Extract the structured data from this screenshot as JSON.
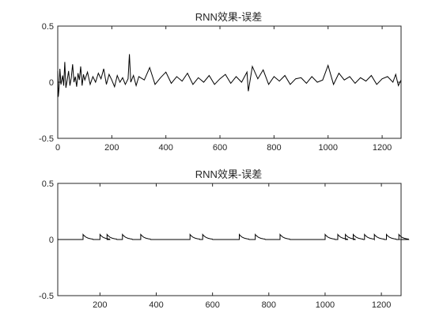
{
  "chart_data": [
    {
      "type": "line",
      "title": "RNN效果-误差",
      "xlabel": "",
      "ylabel": "",
      "xlim": [
        0,
        1270
      ],
      "ylim": [
        -0.5,
        0.5
      ],
      "xticks": [
        0,
        200,
        400,
        600,
        800,
        1000,
        1200
      ],
      "yticks": [
        -0.5,
        0,
        0.5
      ],
      "ytick_labels": [
        "-0.5",
        "0",
        "0.5"
      ],
      "grid": false,
      "color": "#000000",
      "series": [
        {
          "x": [
            0,
            2,
            5,
            8,
            12,
            18,
            22,
            26,
            30,
            35,
            40,
            45,
            50,
            55,
            60,
            65,
            70,
            75,
            80,
            85,
            90,
            95,
            100,
            110,
            120,
            130,
            140,
            150,
            160,
            170,
            180,
            190,
            200,
            210,
            220,
            230,
            240,
            250,
            260,
            265,
            270,
            280,
            290,
            300,
            320,
            340,
            360,
            380,
            400,
            420,
            440,
            460,
            480,
            500,
            520,
            540,
            560,
            580,
            600,
            620,
            640,
            660,
            680,
            700,
            705,
            720,
            740,
            760,
            780,
            800,
            820,
            840,
            860,
            880,
            900,
            920,
            940,
            960,
            980,
            1000,
            1020,
            1040,
            1060,
            1080,
            1100,
            1120,
            1140,
            1160,
            1180,
            1200,
            1220,
            1240,
            1250,
            1260,
            1270
          ],
          "y": [
            0.1,
            -0.13,
            -0.05,
            0.12,
            -0.02,
            0.06,
            -0.03,
            0.18,
            -0.05,
            0.02,
            0.1,
            -0.03,
            0.04,
            0.16,
            0.0,
            0.05,
            -0.04,
            0.08,
            0.02,
            0.14,
            -0.03,
            0.07,
            0.02,
            0.09,
            -0.02,
            0.05,
            0.0,
            0.08,
            0.03,
            0.12,
            -0.02,
            0.07,
            0.02,
            -0.04,
            0.06,
            0.0,
            0.04,
            -0.02,
            0.03,
            0.25,
            0.0,
            0.06,
            -0.03,
            0.05,
            0.02,
            0.13,
            -0.02,
            0.04,
            0.09,
            -0.01,
            0.05,
            0.01,
            0.08,
            -0.02,
            0.04,
            0.0,
            0.06,
            -0.02,
            0.03,
            0.07,
            -0.01,
            0.05,
            0.0,
            0.09,
            -0.08,
            0.14,
            0.03,
            0.11,
            -0.02,
            0.05,
            0.01,
            0.06,
            -0.02,
            0.03,
            0.04,
            -0.01,
            0.05,
            0.0,
            0.02,
            0.15,
            -0.02,
            0.08,
            0.02,
            0.05,
            -0.01,
            0.04,
            0.01,
            0.06,
            -0.02,
            0.03,
            0.05,
            0.0,
            0.07,
            -0.03,
            0.02
          ]
        }
      ]
    },
    {
      "type": "line",
      "title": "RNN效果-误差",
      "xlabel": "",
      "ylabel": "",
      "xlim": [
        50,
        1270
      ],
      "ylim": [
        -0.5,
        0.5
      ],
      "xticks": [
        200,
        400,
        600,
        800,
        1000,
        1200
      ],
      "yticks": [
        -0.5,
        0,
        0.5
      ],
      "ytick_labels": [
        "-0.5",
        "0",
        "0.5"
      ],
      "grid": false,
      "color": "#000000",
      "spike_height": 0.045,
      "spike_decay": 14,
      "series": [
        {
          "baseline": 0.0,
          "spike_x": [
            140,
            200,
            225,
            280,
            345,
            520,
            565,
            695,
            752,
            840,
            1000,
            1045,
            1072,
            1100,
            1140,
            1175,
            1218,
            1262
          ]
        }
      ]
    }
  ]
}
